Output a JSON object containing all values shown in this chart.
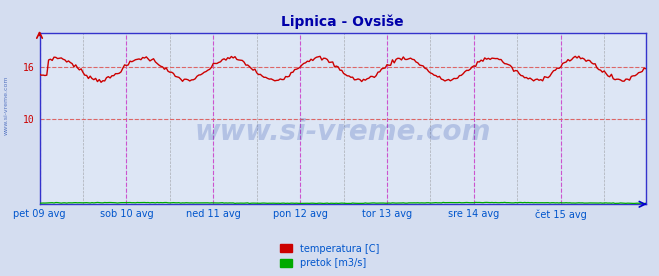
{
  "title": "Lipnica - Ovsiše",
  "title_color": "#0000aa",
  "title_fontsize": 10,
  "background_color": "#d4ddf0",
  "plot_bg_color": "#dde6f5",
  "x_label_color": "#0055cc",
  "y_label_color": "#cc0000",
  "tick_labels": [
    "pet 09 avg",
    "sob 10 avg",
    "ned 11 avg",
    "pon 12 avg",
    "tor 13 avg",
    "sre 14 avg",
    "čet 15 avg"
  ],
  "tick_positions": [
    0,
    48,
    96,
    144,
    192,
    240,
    288
  ],
  "xlim": [
    0,
    335
  ],
  "ylim": [
    0,
    20
  ],
  "yticks": [
    10,
    16
  ],
  "grid_color": "#aabbcc",
  "vline_color_solid": "#cc44cc",
  "vline_color_dashed": "#999999",
  "hline_color": "#dd6666",
  "temp_color": "#cc0000",
  "pretok_color": "#00aa00",
  "watermark_color": "#2244aa",
  "watermark_alpha": 0.22,
  "watermark_fontsize": 20,
  "side_text": "www.si-vreme.com",
  "side_text_color": "#4466bb",
  "legend_temp_label": "temperatura [C]",
  "legend_pretok_label": "pretok [m3/s]",
  "n_points": 336,
  "spine_color": "#3333cc",
  "arrow_color": "#cc0000",
  "axis_arrow_color": "#0000cc"
}
